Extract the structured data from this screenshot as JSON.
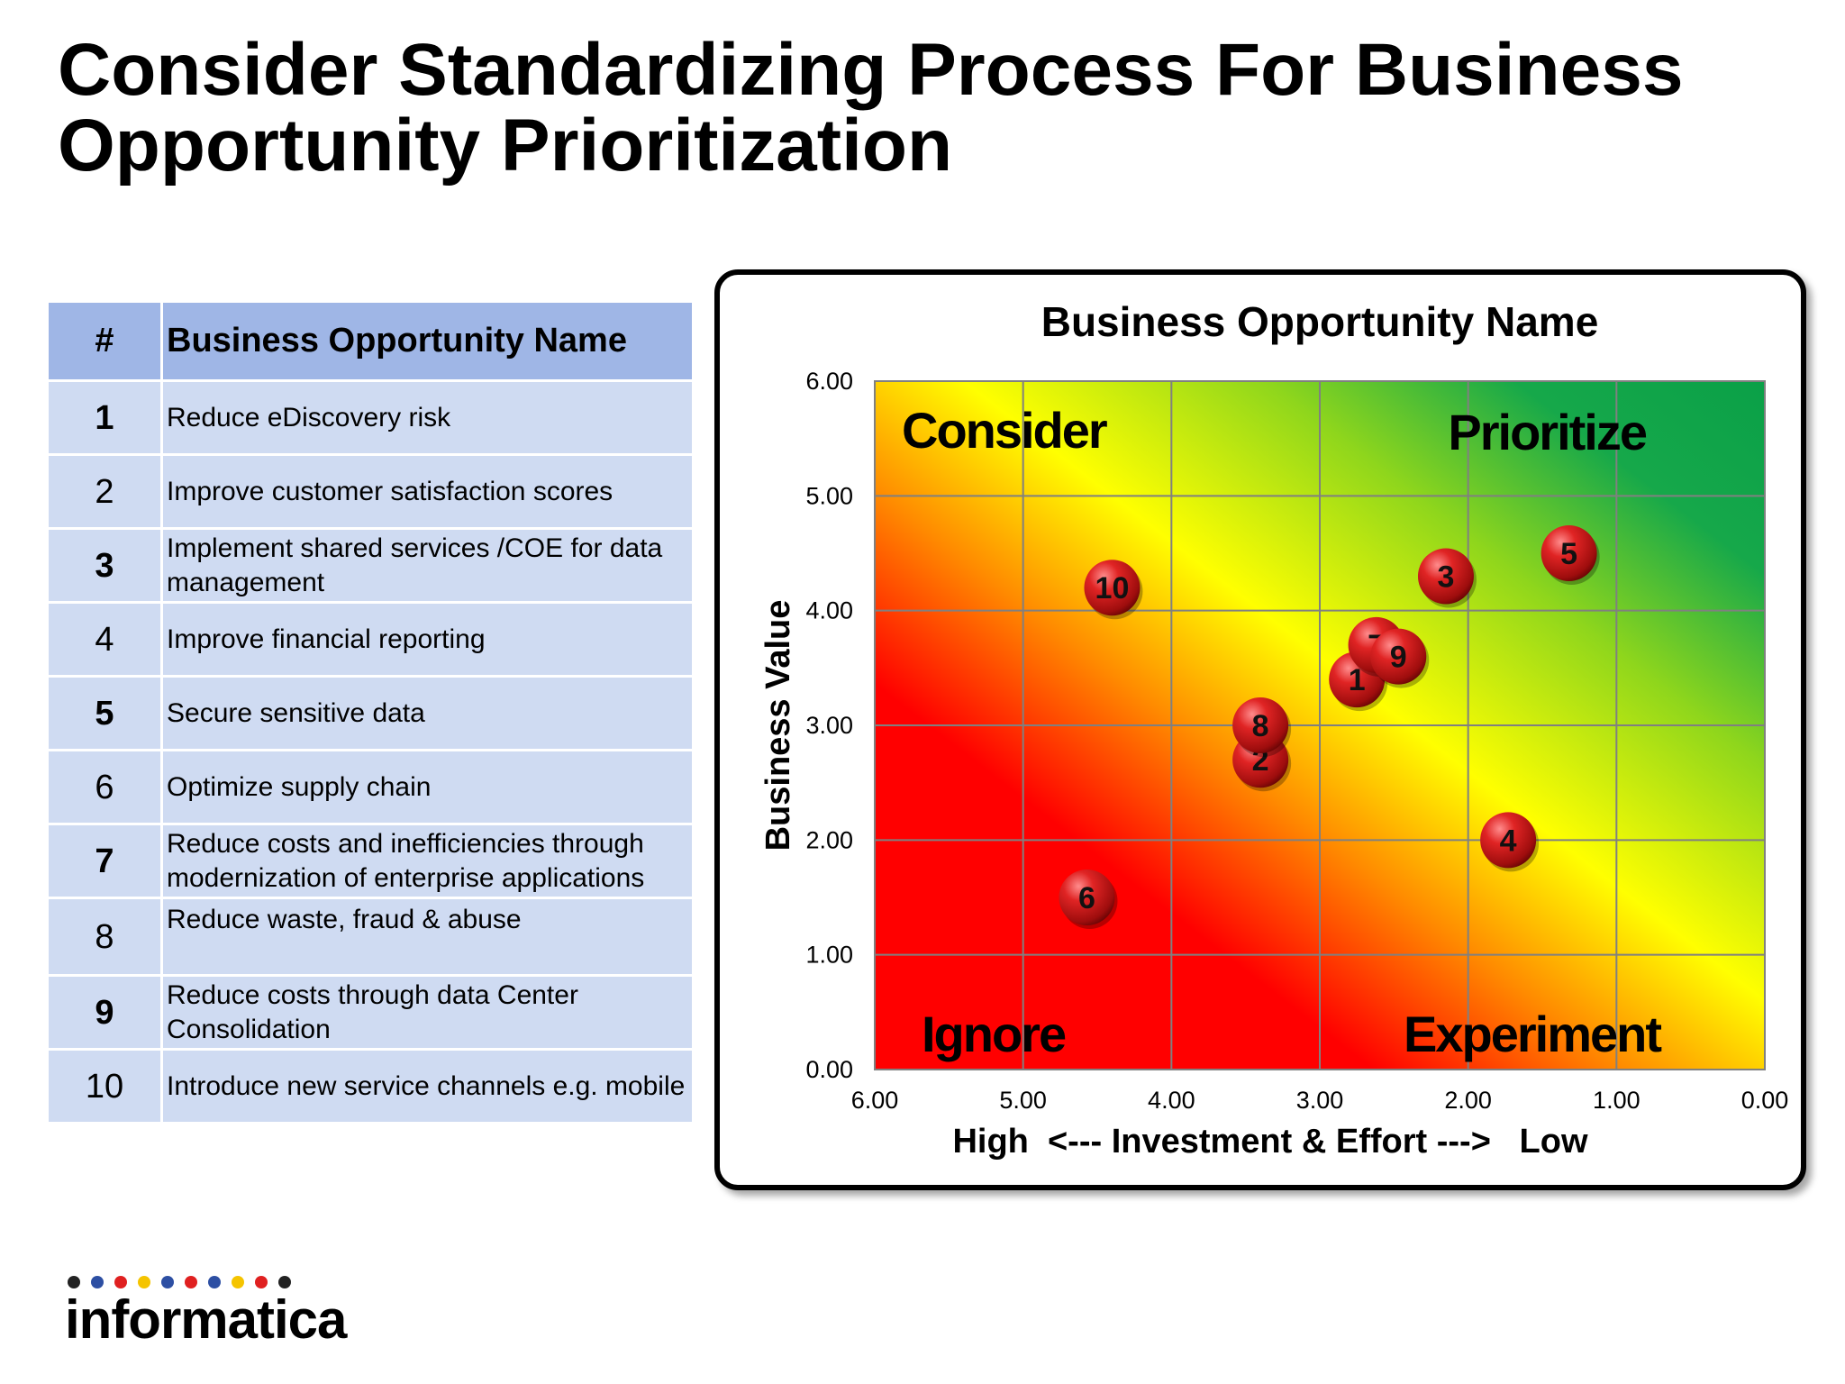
{
  "page": {
    "title": "Consider Standardizing Process For Business Opportunity Prioritization"
  },
  "table": {
    "header_num": "#",
    "header_name": "Business Opportunity Name",
    "rows": [
      {
        "num": "1",
        "name": "Reduce eDiscovery risk",
        "bold": true
      },
      {
        "num": "2",
        "name": "Improve customer satisfaction scores",
        "bold": false
      },
      {
        "num": "3",
        "name": "Implement shared services /COE for data management",
        "bold": true
      },
      {
        "num": "4",
        "name": "Improve financial reporting",
        "bold": false
      },
      {
        "num": "5",
        "name": "Secure sensitive data",
        "bold": true
      },
      {
        "num": "6",
        "name": "Optimize supply chain",
        "bold": false
      },
      {
        "num": "7",
        "name": "Reduce costs and inefficiencies through modernization of enterprise applications",
        "bold": true
      },
      {
        "num": "8",
        "name": "Reduce waste, fraud & abuse",
        "bold": false
      },
      {
        "num": "9",
        "name": "Reduce costs through data Center Consolidation",
        "bold": true
      },
      {
        "num": "10",
        "name": "Introduce new service channels e.g. mobile",
        "bold": false
      }
    ]
  },
  "chart_data": {
    "type": "scatter",
    "title": "Business Opportunity Name",
    "xlabel": "High  <--- Investment & Effort --->   Low",
    "ylabel": "Business Value",
    "xlim": [
      6,
      0
    ],
    "ylim": [
      0,
      6
    ],
    "x_reversed": true,
    "xticks": [
      "6.00",
      "5.00",
      "4.00",
      "3.00",
      "2.00",
      "1.00",
      "0.00"
    ],
    "yticks": [
      "0.00",
      "1.00",
      "2.00",
      "3.00",
      "4.00",
      "5.00",
      "6.00"
    ],
    "grid": true,
    "background": "gradient red (bottom-left) to yellow to green (top-right)",
    "quadrant_labels": [
      {
        "text": "Consider",
        "position": "top-left"
      },
      {
        "text": "Prioritize",
        "position": "top-right"
      },
      {
        "text": "Ignore",
        "position": "bottom-left"
      },
      {
        "text": "Experiment",
        "position": "bottom-right"
      }
    ],
    "points": [
      {
        "label": "1",
        "x": 2.75,
        "y": 3.4
      },
      {
        "label": "2",
        "x": 3.4,
        "y": 2.7
      },
      {
        "label": "3",
        "x": 2.15,
        "y": 4.3
      },
      {
        "label": "4",
        "x": 1.73,
        "y": 2.0
      },
      {
        "label": "5",
        "x": 1.32,
        "y": 4.5
      },
      {
        "label": "6",
        "x": 4.57,
        "y": 1.5
      },
      {
        "label": "7",
        "x": 2.62,
        "y": 3.7
      },
      {
        "label": "8",
        "x": 3.4,
        "y": 3.0
      },
      {
        "label": "9",
        "x": 2.47,
        "y": 3.6
      },
      {
        "label": "10",
        "x": 4.4,
        "y": 4.2
      }
    ],
    "marker_color": "#d11f1f"
  },
  "logo": {
    "text": "informatica",
    "dot_colors": [
      "#222222",
      "#2d4fa3",
      "#e02020",
      "#f5c400",
      "#2d4fa3",
      "#e02020",
      "#2d4fa3",
      "#f5c400",
      "#e02020",
      "#222222"
    ]
  }
}
